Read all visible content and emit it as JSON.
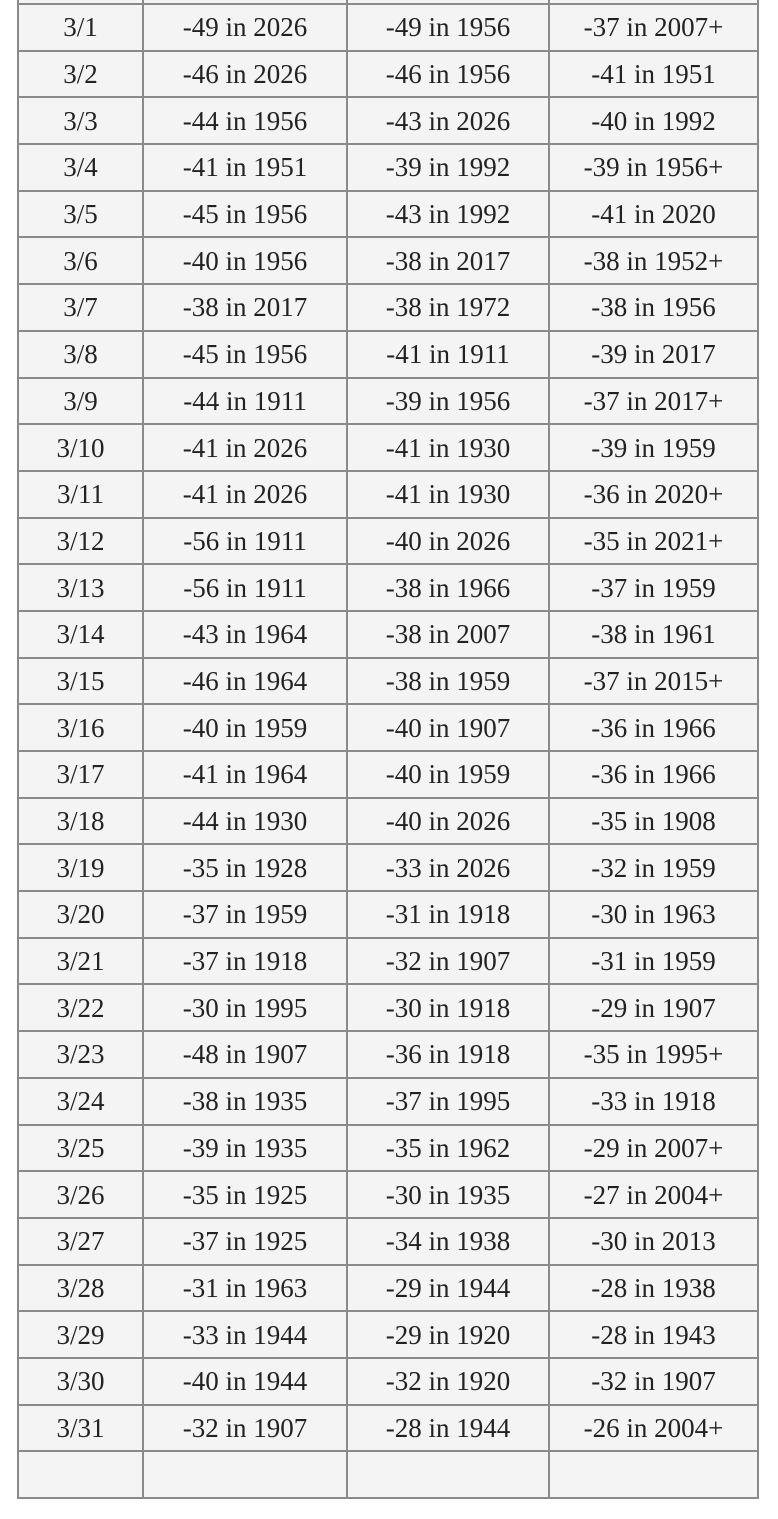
{
  "table": {
    "rows": [
      [
        "3/1",
        "-49 in 2026",
        "-49 in 1956",
        "-37 in 2007+"
      ],
      [
        "3/2",
        "-46 in 2026",
        "-46 in 1956",
        "-41 in 1951"
      ],
      [
        "3/3",
        "-44 in 1956",
        "-43 in 2026",
        "-40 in 1992"
      ],
      [
        "3/4",
        "-41 in 1951",
        "-39 in 1992",
        "-39 in 1956+"
      ],
      [
        "3/5",
        "-45 in 1956",
        "-43 in 1992",
        "-41 in 2020"
      ],
      [
        "3/6",
        "-40 in 1956",
        "-38 in 2017",
        "-38 in 1952+"
      ],
      [
        "3/7",
        "-38 in 2017",
        "-38 in 1972",
        "-38 in 1956"
      ],
      [
        "3/8",
        "-45 in 1956",
        "-41 in 1911",
        "-39 in 2017"
      ],
      [
        "3/9",
        "-44 in 1911",
        "-39 in 1956",
        "-37 in 2017+"
      ],
      [
        "3/10",
        "-41 in 2026",
        "-41 in 1930",
        "-39 in 1959"
      ],
      [
        "3/11",
        "-41 in 2026",
        "-41 in 1930",
        "-36 in 2020+"
      ],
      [
        "3/12",
        "-56 in 1911",
        "-40 in 2026",
        "-35 in 2021+"
      ],
      [
        "3/13",
        "-56 in 1911",
        "-38 in 1966",
        "-37 in 1959"
      ],
      [
        "3/14",
        "-43 in 1964",
        "-38 in 2007",
        "-38 in 1961"
      ],
      [
        "3/15",
        "-46 in 1964",
        "-38 in 1959",
        "-37 in 2015+"
      ],
      [
        "3/16",
        "-40 in 1959",
        "-40 in 1907",
        "-36 in 1966"
      ],
      [
        "3/17",
        "-41 in 1964",
        "-40 in 1959",
        "-36 in 1966"
      ],
      [
        "3/18",
        "-44 in 1930",
        "-40 in 2026",
        "-35 in 1908"
      ],
      [
        "3/19",
        "-35 in 1928",
        "-33 in 2026",
        "-32 in 1959"
      ],
      [
        "3/20",
        "-37 in 1959",
        "-31 in 1918",
        "-30 in 1963"
      ],
      [
        "3/21",
        "-37 in 1918",
        "-32 in 1907",
        "-31 in 1959"
      ],
      [
        "3/22",
        "-30 in 1995",
        "-30 in 1918",
        "-29 in 1907"
      ],
      [
        "3/23",
        "-48 in 1907",
        "-36 in 1918",
        "-35 in 1995+"
      ],
      [
        "3/24",
        "-38 in 1935",
        "-37 in 1995",
        "-33 in 1918"
      ],
      [
        "3/25",
        "-39 in 1935",
        "-35 in 1962",
        "-29 in 2007+"
      ],
      [
        "3/26",
        "-35 in 1925",
        "-30 in 1935",
        "-27 in 2004+"
      ],
      [
        "3/27",
        "-37 in 1925",
        "-34 in 1938",
        "-30 in 2013"
      ],
      [
        "3/28",
        "-31 in 1963",
        "-29 in 1944",
        "-28 in 1938"
      ],
      [
        "3/29",
        "-33 in 1944",
        "-29 in 1920",
        "-28 in 1943"
      ],
      [
        "3/30",
        "-40 in 1944",
        "-32 in 1920",
        "-32 in 1907"
      ],
      [
        "3/31",
        "-32 in 1907",
        "-28 in 1944",
        "-26 in 2004+"
      ]
    ]
  }
}
